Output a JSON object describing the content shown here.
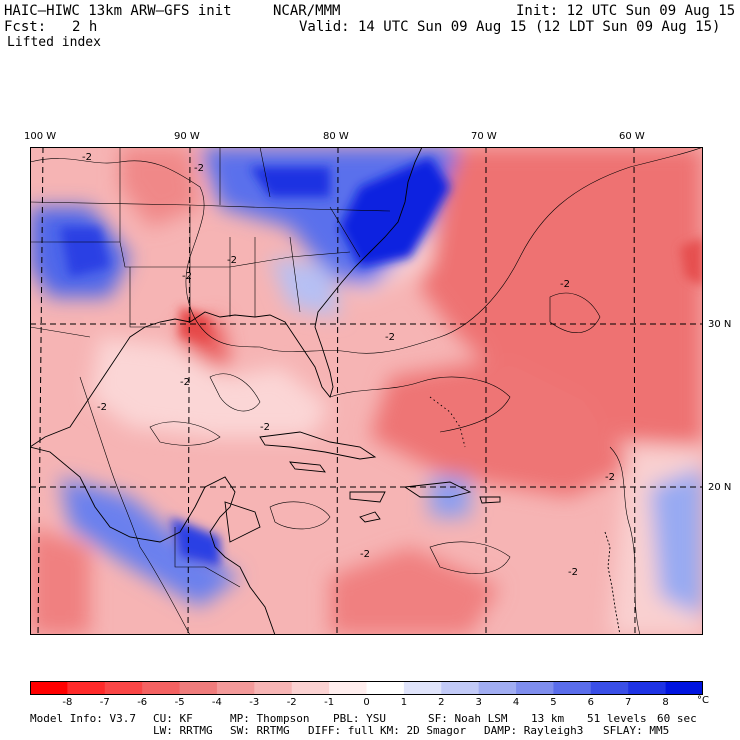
{
  "header": {
    "model": "HAIC–HIWC 13km ARW–GFS init",
    "org": "NCAR/MMM",
    "init": "Init: 12 UTC Sun 09 Aug 15",
    "fcst_label": "Fcst:",
    "fcst_value": "2 h",
    "valid": "Valid: 14 UTC Sun 09 Aug 15 (12 LDT Sun 09 Aug 15)",
    "field": "Lifted index"
  },
  "map": {
    "lon_labels": [
      "100 W",
      "90 W",
      "80 W",
      "70 W",
      "60 W"
    ],
    "lat_labels": [
      "30 N",
      "20 N"
    ],
    "contour_label": "-2",
    "colors": {
      "strong_blue": "#0a22e0",
      "blue": "#8aa0f0",
      "white": "#ffffff",
      "pink": "#f6b4b4",
      "red": "#ee6e6e"
    }
  },
  "colorbar": {
    "ticks": [
      "-8",
      "-7",
      "-6",
      "-5",
      "-4",
      "-3",
      "-2",
      "-1",
      "0",
      "1",
      "2",
      "3",
      "4",
      "5",
      "6",
      "7",
      "8"
    ],
    "unit": "°C",
    "colors": [
      "#ff0000",
      "#ff2a2a",
      "#fa4646",
      "#f46262",
      "#ef7c7c",
      "#f39a9a",
      "#f7b5b5",
      "#fbd2d2",
      "#ffeeee",
      "#ffffff",
      "#e0e4fb",
      "#c2caf7",
      "#a1adf2",
      "#7f8eee",
      "#5a6deb",
      "#3a4fe7",
      "#1e33e4",
      "#0014e0"
    ]
  },
  "footer": {
    "line1": [
      "Model Info: V3.7",
      "CU: KF",
      "MP: Thompson",
      "PBL: YSU",
      "SF: Noah LSM",
      "13 km",
      "51 levels",
      "60 sec"
    ],
    "line2": [
      "LW: RRTMG",
      "SW: RRTMG",
      "DIFF: full",
      "KM: 2D Smagor",
      "DAMP: Rayleigh3",
      "SFLAY: MM5"
    ]
  }
}
